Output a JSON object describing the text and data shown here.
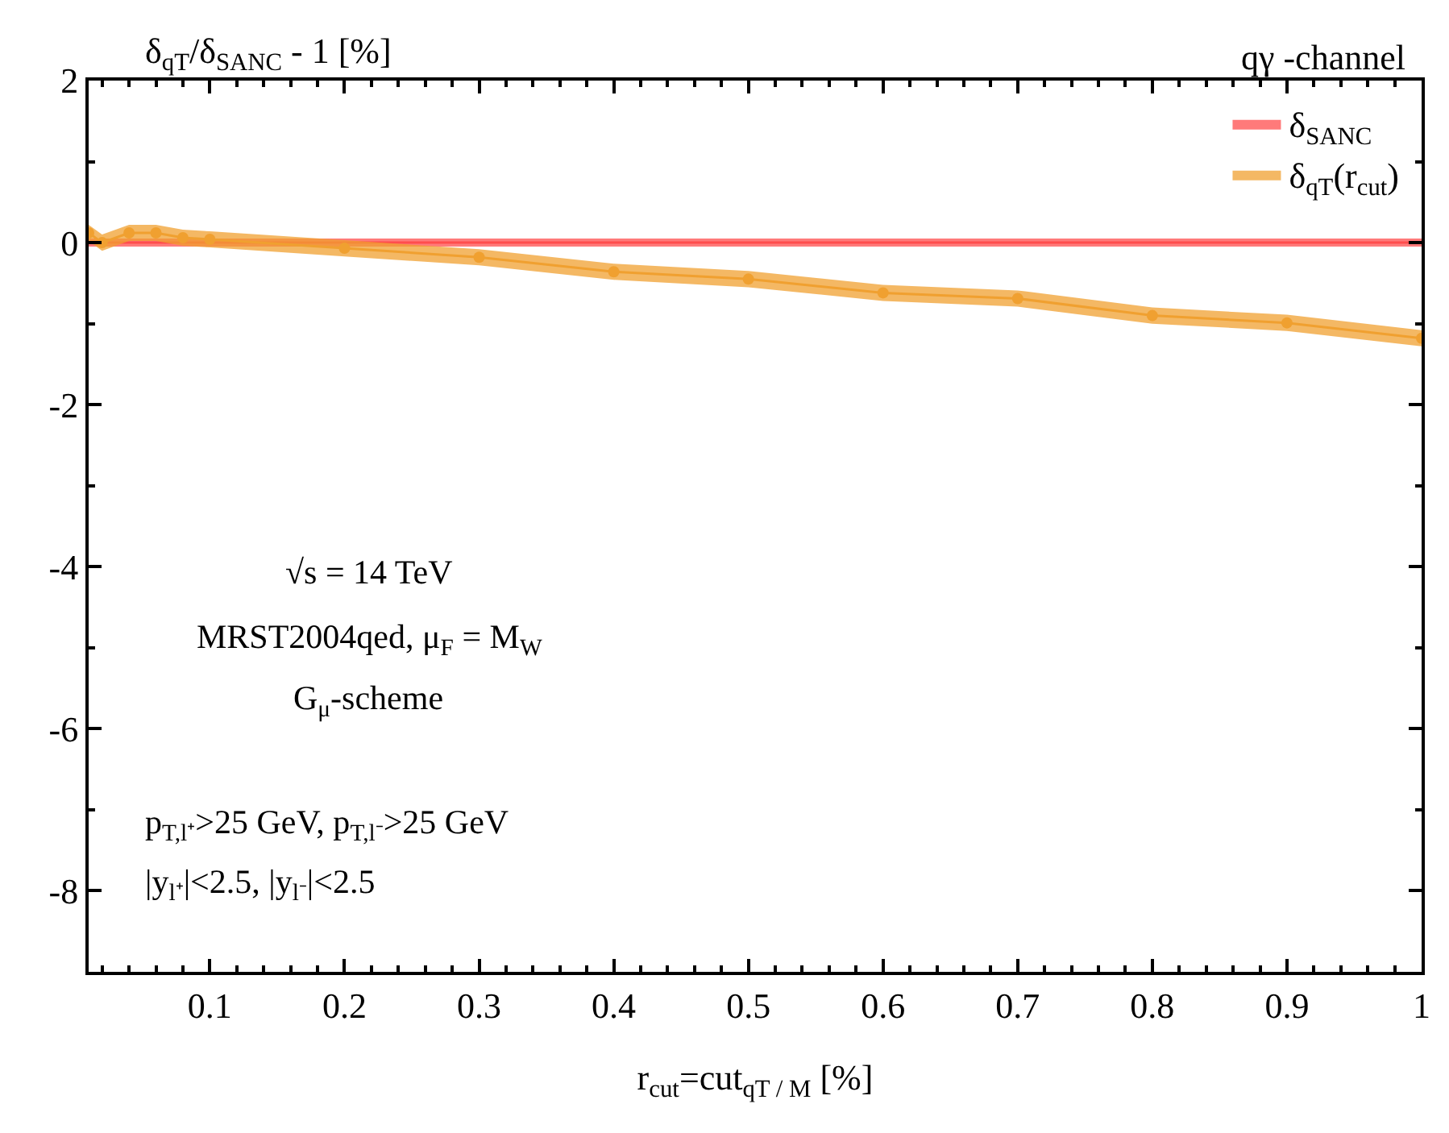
{
  "chart_data": {
    "type": "line",
    "title": "qγ -channel",
    "ylabel": "δ$_{qT}$/δ$_{SANC}$ - 1 [%]",
    "xlabel": "r$_{cut}$=cut$_{qT / M}$ [%]",
    "x": [
      0.01,
      0.02,
      0.04,
      0.06,
      0.08,
      0.1,
      0.2,
      0.3,
      0.4,
      0.5,
      0.6,
      0.7,
      0.8,
      0.9,
      1.0
    ],
    "series": [
      {
        "name": "δ$_{SANC}$",
        "color": "#ff4d4d",
        "marker": "none",
        "x": [
          0.01,
          1.0
        ],
        "values": [
          0,
          0
        ],
        "lower": [
          -0.05,
          -0.05
        ],
        "upper": [
          0.05,
          0.05
        ]
      },
      {
        "name": "δ$_{qT}$(r$_{cut}$)",
        "color": "#f0a030",
        "marker": "circle",
        "values": [
          0.12,
          0.0,
          0.12,
          0.12,
          0.06,
          0.04,
          -0.07,
          -0.18,
          -0.36,
          -0.45,
          -0.62,
          -0.69,
          -0.9,
          -0.99,
          -1.18
        ],
        "lower": [
          0.02,
          -0.1,
          0.02,
          0.02,
          -0.04,
          -0.06,
          -0.17,
          -0.28,
          -0.46,
          -0.55,
          -0.72,
          -0.79,
          -1.0,
          -1.09,
          -1.28
        ],
        "upper": [
          0.22,
          0.1,
          0.22,
          0.22,
          0.16,
          0.14,
          0.03,
          -0.08,
          -0.26,
          -0.35,
          -0.52,
          -0.59,
          -0.8,
          -0.89,
          -1.08
        ]
      }
    ],
    "xlim": [
      0.01,
      1.0
    ],
    "ylim": [
      -9,
      2
    ],
    "xticks": [
      0.1,
      0.2,
      0.3,
      0.4,
      0.5,
      0.6,
      0.7,
      0.8,
      0.9,
      1
    ],
    "yticks": [
      -8,
      -6,
      -4,
      -2,
      0,
      2
    ],
    "legend": "top right",
    "annotations": [
      "√s = 14 TeV",
      "MRST2004qed, μ$_{F}$ = M$_{W}$",
      "G$_{μ}$-scheme",
      "p$_{T,l⁺}$>25 GeV, p$_{T,l⁻}$>25 GeV",
      "|y$_{l⁺}$|<2.5, |y$_{l⁻}$|<2.5"
    ]
  }
}
